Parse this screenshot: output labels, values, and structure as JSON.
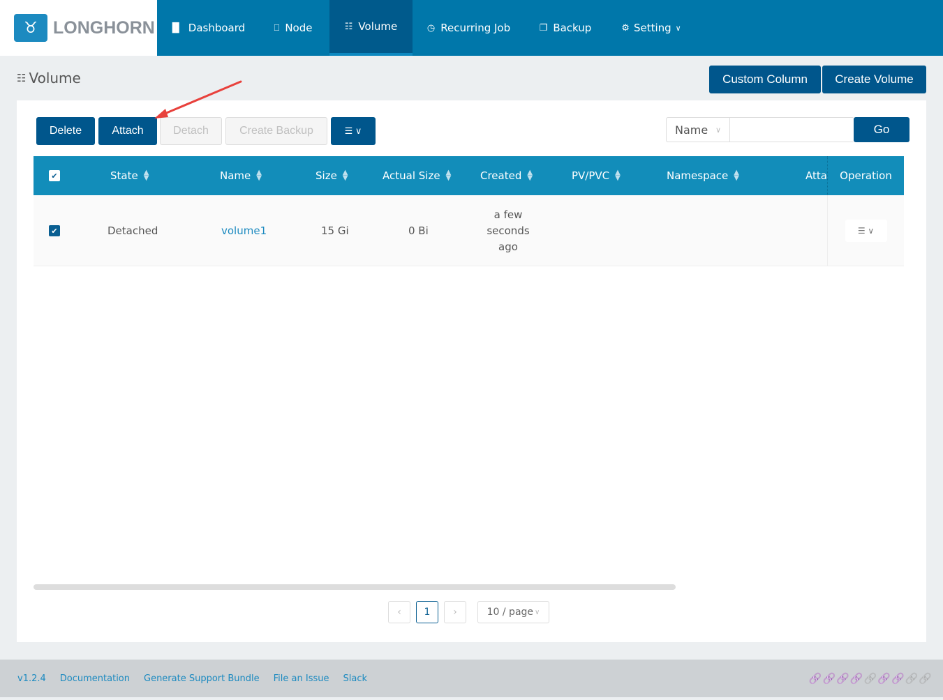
{
  "brand": {
    "name": "LONGHORN"
  },
  "nav": [
    {
      "label": "Dashboard",
      "icon": "bar-chart-icon"
    },
    {
      "label": "Node",
      "icon": "laptop-icon"
    },
    {
      "label": "Volume",
      "icon": "database-icon",
      "active": true
    },
    {
      "label": "Recurring Job",
      "icon": "clock-icon"
    },
    {
      "label": "Backup",
      "icon": "copy-icon"
    },
    {
      "label": "Setting",
      "icon": "gear-icon"
    }
  ],
  "page": {
    "title": "Volume",
    "custom_column": "Custom Column",
    "create_volume": "Create Volume"
  },
  "toolbar": {
    "delete": "Delete",
    "attach": "Attach",
    "detach": "Detach",
    "create_backup": "Create Backup"
  },
  "search": {
    "field": "Name",
    "value": "",
    "go": "Go"
  },
  "table": {
    "headers": [
      "State",
      "Name",
      "Size",
      "Actual Size",
      "Created",
      "PV/PVC",
      "Namespace",
      "Atta",
      "Operation"
    ],
    "rows": [
      {
        "selected": true,
        "state": "Detached",
        "name": "volume1",
        "size": "15 Gi",
        "actual_size": "0 Bi",
        "created": "a few seconds ago",
        "pvpvc": "",
        "namespace": ""
      }
    ]
  },
  "pagination": {
    "current": "1",
    "page_size": "10 / page"
  },
  "footer": {
    "version": "v1.2.4",
    "links": [
      "Documentation",
      "Generate Support Bundle",
      "File an Issue",
      "Slack"
    ]
  },
  "status_links": [
    "#1a8a4a",
    "#1a8a4a",
    "#1a8a4a",
    "#1a8a4a",
    "#b8b8b8",
    "#1a8a4a",
    "#1a8a4a",
    "#b8b8b8",
    "#b8b8b8"
  ],
  "colors": {
    "navbar": "#0077aa",
    "active": "#005a8c",
    "button": "#00568c",
    "table_header": "#128dba",
    "annotation_arrow": "#e8413c"
  }
}
